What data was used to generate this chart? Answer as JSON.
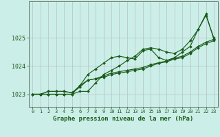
{
  "title": "Graphe pression niveau de la mer (hPa)",
  "bg_color": "#cceee8",
  "grid_color": "#b8c8c8",
  "line_color": "#1a5c1a",
  "marker_color": "#1a5c1a",
  "xlim": [
    -0.5,
    23.5
  ],
  "ylim": [
    1022.55,
    1026.3
  ],
  "xticks": [
    0,
    1,
    2,
    3,
    4,
    5,
    6,
    7,
    8,
    9,
    10,
    11,
    12,
    13,
    14,
    15,
    16,
    17,
    18,
    19,
    20,
    21,
    22,
    23
  ],
  "yticks": [
    1023,
    1024,
    1025
  ],
  "curves": [
    [
      1023.0,
      1023.0,
      1023.0,
      1023.0,
      1023.0,
      1023.0,
      1023.3,
      1023.7,
      1023.9,
      1024.1,
      1024.3,
      1024.35,
      1024.3,
      1024.25,
      1024.55,
      1024.6,
      1024.3,
      1024.2,
      1024.3,
      1024.5,
      1024.7,
      1025.3,
      1025.8,
      1025.0
    ],
    [
      1023.0,
      1023.0,
      1023.0,
      1023.0,
      1023.0,
      1023.0,
      1023.1,
      1023.1,
      1023.4,
      1023.7,
      1023.85,
      1024.0,
      1024.2,
      1024.35,
      1024.6,
      1024.65,
      1024.6,
      1024.5,
      1024.45,
      1024.6,
      1024.9,
      1025.3,
      1025.85,
      1024.95
    ],
    [
      1023.0,
      1023.0,
      1023.1,
      1023.1,
      1023.1,
      1023.05,
      1023.3,
      1023.5,
      1023.55,
      1023.6,
      1023.7,
      1023.75,
      1023.8,
      1023.85,
      1023.9,
      1024.0,
      1024.1,
      1024.15,
      1024.25,
      1024.3,
      1024.45,
      1024.65,
      1024.8,
      1024.9
    ],
    [
      1023.0,
      1023.0,
      1023.1,
      1023.1,
      1023.1,
      1023.05,
      1023.25,
      1023.5,
      1023.55,
      1023.65,
      1023.75,
      1023.8,
      1023.85,
      1023.9,
      1023.95,
      1024.05,
      1024.12,
      1024.18,
      1024.28,
      1024.35,
      1024.5,
      1024.7,
      1024.85,
      1024.95
    ]
  ]
}
